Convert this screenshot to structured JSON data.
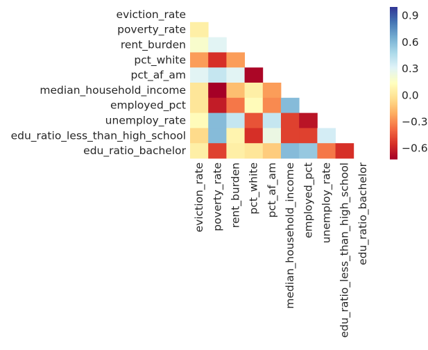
{
  "chart_data": {
    "type": "heatmap",
    "title": "",
    "xlabel": "",
    "ylabel": "",
    "variables": [
      "eviction_rate",
      "poverty_rate",
      "rent_burden",
      "pct_white",
      "pct_af_am",
      "median_household_income",
      "employed_pct",
      "unemploy_rate",
      "edu_ratio_less_than_high_school",
      "edu_ratio_bachelor"
    ],
    "mask": "upper-triangle including diagonal",
    "matrix": [
      [
        null,
        null,
        null,
        null,
        null,
        null,
        null,
        null,
        null,
        null
      ],
      [
        0.05,
        null,
        null,
        null,
        null,
        null,
        null,
        null,
        null,
        null
      ],
      [
        0.18,
        0.3,
        null,
        null,
        null,
        null,
        null,
        null,
        null,
        null
      ],
      [
        -0.25,
        -0.55,
        -0.25,
        null,
        null,
        null,
        null,
        null,
        null,
        null
      ],
      [
        0.3,
        0.4,
        0.3,
        -0.7,
        null,
        null,
        null,
        null,
        null,
        null
      ],
      [
        0.0,
        -0.75,
        -0.15,
        0.05,
        -0.25,
        null,
        null,
        null,
        null,
        null
      ],
      [
        0.0,
        -0.62,
        -0.35,
        0.12,
        -0.3,
        0.6,
        null,
        null,
        null,
        null
      ],
      [
        0.12,
        0.6,
        0.4,
        -0.45,
        0.4,
        -0.5,
        -0.65,
        null,
        null,
        null
      ],
      [
        -0.05,
        0.6,
        0.08,
        -0.55,
        0.25,
        -0.5,
        -0.5,
        0.35,
        null,
        null
      ],
      [
        0.05,
        -0.5,
        0.05,
        0.0,
        -0.1,
        0.6,
        0.55,
        -0.35,
        -0.55,
        null
      ]
    ],
    "colorbar": {
      "colormap": "RdYlBu",
      "vmin": -0.72,
      "vmax": 1.0,
      "ticks": [
        0.9,
        0.6,
        0.3,
        0.0,
        -0.3,
        -0.6
      ],
      "tick_labels": [
        "0.9",
        "0.6",
        "0.3",
        "0.0",
        "−0.3",
        "−0.6"
      ]
    },
    "grid": false,
    "legend": "colorbar-right"
  }
}
